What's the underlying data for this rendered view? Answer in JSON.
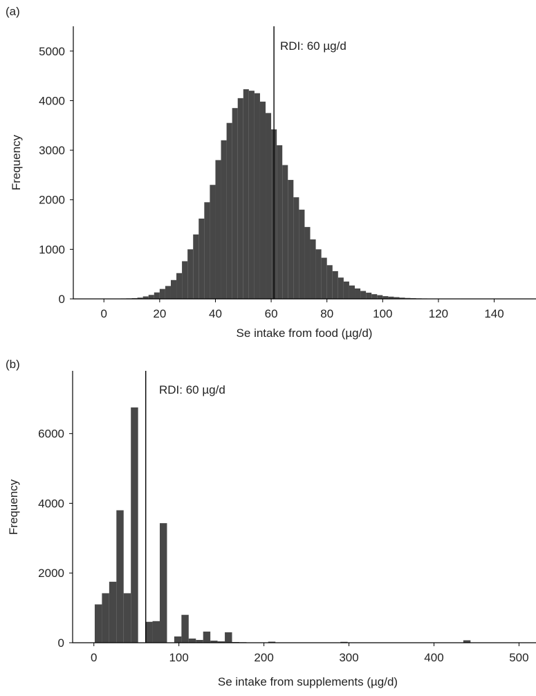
{
  "chart_data": [
    {
      "type": "bar",
      "panel": "(a)",
      "xlabel": "Se intake from food (µg/d)",
      "ylabel": "Frequency",
      "xlim": [
        -8,
        155
      ],
      "ylim": [
        0,
        5500
      ],
      "xticks": [
        0,
        20,
        40,
        60,
        80,
        100,
        120,
        140
      ],
      "yticks": [
        0,
        1000,
        2000,
        3000,
        4000,
        5000
      ],
      "bin_width": 2,
      "bin_start": 0,
      "values": [
        2,
        3,
        5,
        8,
        10,
        15,
        25,
        50,
        80,
        130,
        200,
        260,
        380,
        520,
        760,
        1000,
        1300,
        1620,
        1950,
        2300,
        2800,
        3200,
        3550,
        3850,
        4050,
        4230,
        4200,
        4150,
        3980,
        3750,
        3420,
        3100,
        2700,
        2400,
        2050,
        1800,
        1450,
        1200,
        1000,
        830,
        680,
        560,
        430,
        350,
        270,
        210,
        160,
        125,
        95,
        75,
        55,
        45,
        35,
        25,
        18,
        14,
        10,
        8,
        6,
        5,
        4,
        3,
        2,
        2,
        1,
        1,
        1,
        1,
        1,
        1,
        1,
        1,
        1,
        1,
        1,
        1,
        1
      ],
      "reference_line": {
        "x": 61,
        "label": "RDI: 60 µg/d"
      }
    },
    {
      "type": "bar",
      "panel": "(b)",
      "xlabel": "Se intake from supplements (µg/d)",
      "ylabel": "Frequency",
      "xlim": [
        -25,
        520
      ],
      "ylim": [
        0,
        7800
      ],
      "xticks": [
        0,
        100,
        200,
        300,
        400,
        500
      ],
      "yticks": [
        0,
        2000,
        4000,
        6000
      ],
      "bin_width": 8.5,
      "bin_start": 1,
      "values": [
        1100,
        1420,
        1750,
        3800,
        1420,
        6750,
        0,
        600,
        620,
        3430,
        0,
        180,
        800,
        120,
        80,
        320,
        60,
        40,
        300,
        20,
        15,
        10,
        10,
        5,
        30,
        5,
        5,
        3,
        3,
        3,
        3,
        3,
        3,
        3,
        25,
        3,
        3,
        3,
        3,
        3,
        3,
        3,
        3,
        3,
        3,
        3,
        3,
        3,
        3,
        3,
        3,
        70,
        3,
        3,
        3,
        3,
        3,
        3,
        3,
        3
      ],
      "reference_line": {
        "x": 61,
        "label": "RDI: 60 µg/d"
      }
    }
  ]
}
